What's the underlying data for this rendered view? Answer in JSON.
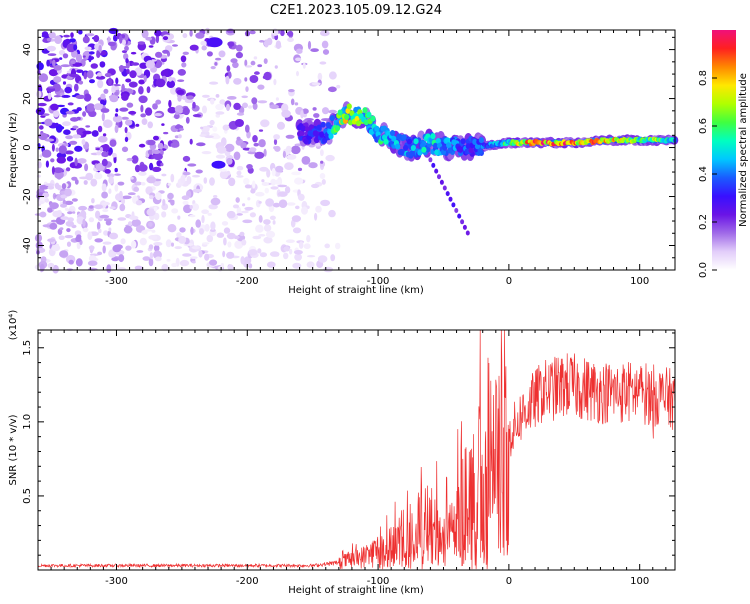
{
  "title": "C2E1.2023.105.09.12.G24",
  "chart_data": [
    {
      "type": "heatmap",
      "xlabel": "Height of straight line (km)",
      "ylabel": "Frequency (Hz)",
      "xlim": [
        -360,
        127
      ],
      "ylim": [
        -50,
        48
      ],
      "xticks": [
        -300,
        -200,
        -100,
        0,
        100
      ],
      "yticks": [
        -40,
        -20,
        0,
        20,
        40
      ],
      "colorbar": {
        "label": "Normalized spectral amplitude",
        "ticks": [
          "0.0",
          "0.2",
          "0.4",
          "0.6",
          "0.8"
        ],
        "range": [
          0,
          1
        ],
        "colors": [
          "#ffffff",
          "#e2cdfa",
          "#a06ae8",
          "#6a14e6",
          "#3810ff",
          "#1a5cff",
          "#00c8ff",
          "#00ffc0",
          "#40ff40",
          "#b0ff00",
          "#ffe800",
          "#ff8800",
          "#ff2020",
          "#f0107a"
        ]
      },
      "ridge": [
        {
          "x": -160,
          "f": 6,
          "a": 0.3
        },
        {
          "x": -140,
          "f": 6,
          "a": 0.35
        },
        {
          "x": -125,
          "f": 14,
          "a": 0.8
        },
        {
          "x": -110,
          "f": 12,
          "a": 0.6
        },
        {
          "x": -100,
          "f": 6,
          "a": 0.55
        },
        {
          "x": -90,
          "f": 3,
          "a": 0.45
        },
        {
          "x": -75,
          "f": 0,
          "a": 0.45
        },
        {
          "x": -60,
          "f": 2,
          "a": 0.55
        },
        {
          "x": -45,
          "f": 0,
          "a": 0.45
        },
        {
          "x": -30,
          "f": 0,
          "a": 0.35
        },
        {
          "x": -15,
          "f": 1,
          "a": 0.4
        },
        {
          "x": 0,
          "f": 2,
          "a": 0.6
        },
        {
          "x": 20,
          "f": 2,
          "a": 0.9
        },
        {
          "x": 50,
          "f": 2,
          "a": 0.85
        },
        {
          "x": 80,
          "f": 3,
          "a": 0.8
        },
        {
          "x": 100,
          "f": 3,
          "a": 0.6
        },
        {
          "x": 115,
          "f": 3,
          "a": 0.7
        },
        {
          "x": 127,
          "f": 3,
          "a": 0.5
        }
      ]
    },
    {
      "type": "line",
      "xlabel": "Height of straight line (km)",
      "ylabel": "SNR (10 * v/v)",
      "yscale_label": "(x10⁴)",
      "xlim": [
        -360,
        127
      ],
      "ylim": [
        0,
        16200
      ],
      "xticks": [
        -300,
        -200,
        -100,
        0,
        100
      ],
      "yticks": [
        {
          "value": 5000,
          "label": "0.5"
        },
        {
          "value": 10000,
          "label": "1.0"
        },
        {
          "value": 15000,
          "label": "1.5"
        }
      ],
      "color": "#ee3030",
      "envelope": [
        {
          "x": -360,
          "y": 300
        },
        {
          "x": -150,
          "y": 300
        },
        {
          "x": -130,
          "y": 500
        },
        {
          "x": -110,
          "y": 900
        },
        {
          "x": -90,
          "y": 1800
        },
        {
          "x": -70,
          "y": 3000
        },
        {
          "x": -50,
          "y": 3500
        },
        {
          "x": -40,
          "y": 4200
        },
        {
          "x": -30,
          "y": 5500
        },
        {
          "x": -20,
          "y": 6500
        },
        {
          "x": -12,
          "y": 8000
        },
        {
          "x": 0,
          "y": 9000
        },
        {
          "x": 10,
          "y": 10500
        },
        {
          "x": 25,
          "y": 12000
        },
        {
          "x": 45,
          "y": 12500
        },
        {
          "x": 70,
          "y": 12000
        },
        {
          "x": 100,
          "y": 12000
        },
        {
          "x": 127,
          "y": 11500
        }
      ]
    }
  ]
}
